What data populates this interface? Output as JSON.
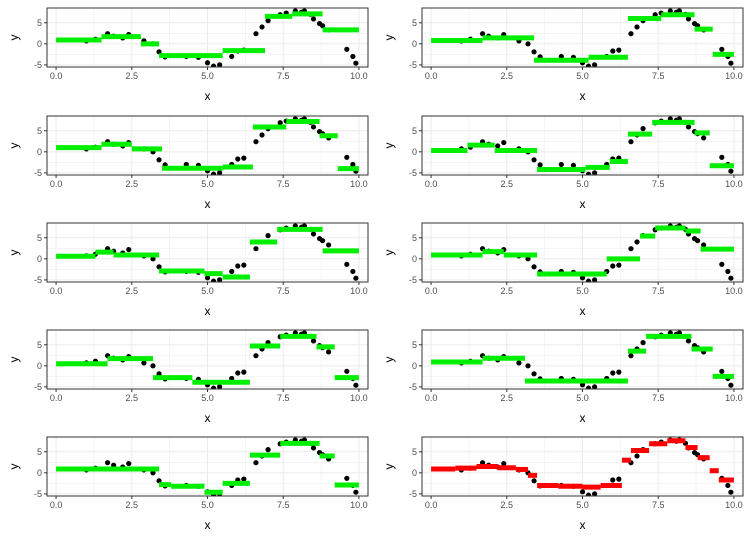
{
  "colors": {
    "fit_green": "#00ee00",
    "fit_red": "#ff0000",
    "points": "#000000",
    "panel_border": "#333333",
    "grid": "#ebebeb"
  },
  "points": {
    "x": [
      1.0,
      1.3,
      1.7,
      1.9,
      2.2,
      2.4,
      2.9,
      3.2,
      3.4,
      3.6,
      4.3,
      4.7,
      5.0,
      5.2,
      5.4,
      5.8,
      6.0,
      6.2,
      6.6,
      6.8,
      7.0,
      7.4,
      7.6,
      7.9,
      8.1,
      8.2,
      8.4,
      8.5,
      8.7,
      8.8,
      9.0,
      9.6,
      9.8,
      9.9
    ],
    "y": [
      0.7,
      1.1,
      2.4,
      1.8,
      1.4,
      2.2,
      0.7,
      0.0,
      -1.9,
      -3.1,
      -3.0,
      -3.2,
      -4.5,
      -5.3,
      -5.0,
      -3.0,
      -1.7,
      -1.5,
      2.4,
      4.0,
      5.5,
      6.9,
      7.3,
      7.8,
      7.5,
      7.8,
      7.0,
      5.9,
      4.8,
      4.3,
      3.3,
      -1.3,
      -3.0,
      -4.6
    ]
  },
  "chart_data": [
    {
      "type": "scatter",
      "xlabel": "x",
      "ylabel": "y",
      "xlim": [
        -0.3,
        10.3
      ],
      "ylim": [
        -5.5,
        8.5
      ],
      "x_ticks": [
        "0.0",
        "2.5",
        "5.0",
        "7.5",
        "10.0"
      ],
      "y_ticks": [
        "-5",
        "0",
        "5"
      ],
      "fit_color": "green",
      "steps": [
        [
          0.0,
          1.5,
          0.9
        ],
        [
          1.5,
          2.8,
          1.7
        ],
        [
          2.8,
          3.4,
          0.0
        ],
        [
          3.4,
          5.5,
          -2.8
        ],
        [
          5.5,
          6.9,
          -1.6
        ],
        [
          6.9,
          7.8,
          6.5
        ],
        [
          7.8,
          8.8,
          7.1
        ],
        [
          8.8,
          10.0,
          3.3
        ]
      ]
    },
    {
      "type": "scatter",
      "xlabel": "x",
      "ylabel": "y",
      "xlim": [
        -0.3,
        10.3
      ],
      "ylim": [
        -5.5,
        8.5
      ],
      "x_ticks": [
        "0.0",
        "2.5",
        "5.0",
        "7.5",
        "10.0"
      ],
      "y_ticks": [
        "-5",
        "0",
        "5"
      ],
      "fit_color": "green",
      "steps": [
        [
          0.0,
          1.7,
          0.8
        ],
        [
          1.7,
          3.4,
          1.4
        ],
        [
          3.4,
          5.2,
          -3.9
        ],
        [
          5.2,
          6.5,
          -3.2
        ],
        [
          6.5,
          7.6,
          6.0
        ],
        [
          7.6,
          8.7,
          6.9
        ],
        [
          8.7,
          9.3,
          3.5
        ],
        [
          9.3,
          10.0,
          -2.5
        ]
      ]
    },
    {
      "type": "scatter",
      "xlabel": "x",
      "ylabel": "y",
      "xlim": [
        -0.3,
        10.3
      ],
      "ylim": [
        -5.5,
        8.5
      ],
      "x_ticks": [
        "0.0",
        "2.5",
        "5.0",
        "7.5",
        "10.0"
      ],
      "y_ticks": [
        "-5",
        "0",
        "5"
      ],
      "fit_color": "green",
      "steps": [
        [
          0.0,
          1.5,
          1.0
        ],
        [
          1.5,
          2.5,
          1.8
        ],
        [
          2.5,
          3.5,
          0.7
        ],
        [
          3.5,
          5.5,
          -3.9
        ],
        [
          5.5,
          6.5,
          -3.6
        ],
        [
          6.5,
          7.6,
          5.9
        ],
        [
          7.6,
          8.7,
          7.2
        ],
        [
          8.7,
          9.3,
          3.8
        ],
        [
          9.3,
          10.0,
          -4.0
        ]
      ]
    },
    {
      "type": "scatter",
      "xlabel": "x",
      "ylabel": "y",
      "xlim": [
        -0.3,
        10.3
      ],
      "ylim": [
        -5.5,
        8.5
      ],
      "x_ticks": [
        "0.0",
        "2.5",
        "5.0",
        "7.5",
        "10.0"
      ],
      "y_ticks": [
        "-5",
        "0",
        "5"
      ],
      "fit_color": "green",
      "steps": [
        [
          0.0,
          1.2,
          0.3
        ],
        [
          1.2,
          2.1,
          1.6
        ],
        [
          2.1,
          3.5,
          0.3
        ],
        [
          3.5,
          5.1,
          -4.2
        ],
        [
          5.1,
          5.9,
          -3.7
        ],
        [
          5.9,
          6.5,
          -2.3
        ],
        [
          6.5,
          7.3,
          4.2
        ],
        [
          7.3,
          8.7,
          7.0
        ],
        [
          8.7,
          9.2,
          4.5
        ],
        [
          9.2,
          10.0,
          -3.3
        ]
      ]
    },
    {
      "type": "scatter",
      "xlabel": "x",
      "ylabel": "y",
      "xlim": [
        -0.3,
        10.3
      ],
      "ylim": [
        -5.5,
        8.5
      ],
      "x_ticks": [
        "0.0",
        "2.5",
        "5.0",
        "7.5",
        "10.0"
      ],
      "y_ticks": [
        "-5",
        "0",
        "5"
      ],
      "fit_color": "green",
      "steps": [
        [
          0.0,
          1.3,
          0.6
        ],
        [
          1.3,
          1.9,
          1.6
        ],
        [
          1.9,
          3.4,
          0.9
        ],
        [
          3.4,
          4.9,
          -2.9
        ],
        [
          4.9,
          5.5,
          -3.5
        ],
        [
          5.5,
          6.4,
          -4.3
        ],
        [
          6.4,
          7.3,
          4.0
        ],
        [
          7.3,
          8.8,
          7.0
        ],
        [
          8.8,
          10.0,
          1.9
        ]
      ]
    },
    {
      "type": "scatter",
      "xlabel": "x",
      "ylabel": "y",
      "xlim": [
        -0.3,
        10.3
      ],
      "ylim": [
        -5.5,
        8.5
      ],
      "x_ticks": [
        "0.0",
        "2.5",
        "5.0",
        "7.5",
        "10.0"
      ],
      "y_ticks": [
        "-5",
        "0",
        "5"
      ],
      "fit_color": "green",
      "steps": [
        [
          0.0,
          1.7,
          0.9
        ],
        [
          1.7,
          2.4,
          1.7
        ],
        [
          2.4,
          3.5,
          0.9
        ],
        [
          3.5,
          5.8,
          -3.6
        ],
        [
          5.8,
          6.9,
          0.0
        ],
        [
          6.9,
          7.4,
          5.4
        ],
        [
          7.4,
          8.4,
          7.3
        ],
        [
          8.4,
          8.9,
          6.6
        ],
        [
          8.9,
          10.0,
          2.3
        ]
      ]
    },
    {
      "type": "scatter",
      "xlabel": "x",
      "ylabel": "y",
      "xlim": [
        -0.3,
        10.3
      ],
      "ylim": [
        -5.5,
        8.5
      ],
      "x_ticks": [
        "0.0",
        "2.5",
        "5.0",
        "7.5",
        "10.0"
      ],
      "y_ticks": [
        "-5",
        "0",
        "5"
      ],
      "fit_color": "green",
      "steps": [
        [
          0.0,
          1.7,
          0.5
        ],
        [
          1.7,
          3.2,
          1.7
        ],
        [
          3.2,
          4.5,
          -2.8
        ],
        [
          4.5,
          6.4,
          -3.9
        ],
        [
          6.4,
          7.4,
          4.7
        ],
        [
          7.4,
          8.6,
          7.0
        ],
        [
          8.6,
          9.2,
          4.5
        ],
        [
          9.2,
          10.0,
          -2.8
        ]
      ]
    },
    {
      "type": "scatter",
      "xlabel": "x",
      "ylabel": "y",
      "xlim": [
        -0.3,
        10.3
      ],
      "ylim": [
        -5.5,
        8.5
      ],
      "x_ticks": [
        "0.0",
        "2.5",
        "5.0",
        "7.5",
        "10.0"
      ],
      "y_ticks": [
        "-5",
        "0",
        "5"
      ],
      "fit_color": "green",
      "steps": [
        [
          0.0,
          1.7,
          0.9
        ],
        [
          1.7,
          3.1,
          1.8
        ],
        [
          3.1,
          6.5,
          -3.6
        ],
        [
          6.5,
          7.1,
          3.5
        ],
        [
          7.1,
          8.6,
          7.0
        ],
        [
          8.6,
          9.3,
          4.0
        ],
        [
          9.3,
          10.0,
          -2.5
        ]
      ]
    },
    {
      "type": "scatter",
      "xlabel": "x",
      "ylabel": "y",
      "xlim": [
        -0.3,
        10.3
      ],
      "ylim": [
        -5.5,
        8.5
      ],
      "x_ticks": [
        "0.0",
        "2.5",
        "5.0",
        "7.5",
        "10.0"
      ],
      "y_ticks": [
        "-5",
        "0",
        "5"
      ],
      "fit_color": "green",
      "steps": [
        [
          0.0,
          3.4,
          0.9
        ],
        [
          3.4,
          3.8,
          -2.8
        ],
        [
          3.8,
          4.9,
          -3.2
        ],
        [
          4.9,
          5.5,
          -4.6
        ],
        [
          5.5,
          6.4,
          -2.5
        ],
        [
          6.4,
          7.4,
          4.2
        ],
        [
          7.4,
          8.7,
          7.0
        ],
        [
          8.7,
          9.2,
          4.0
        ],
        [
          9.2,
          10.0,
          -2.9
        ]
      ]
    },
    {
      "type": "scatter",
      "xlabel": "x",
      "ylabel": "y",
      "xlim": [
        -0.3,
        10.3
      ],
      "ylim": [
        -5.5,
        8.5
      ],
      "x_ticks": [
        "0.0",
        "2.5",
        "5.0",
        "7.5",
        "10.0"
      ],
      "y_ticks": [
        "-5",
        "0",
        "5"
      ],
      "fit_color": "red",
      "steps": [
        [
          0.0,
          0.8,
          0.9
        ],
        [
          0.8,
          1.5,
          1.1
        ],
        [
          1.5,
          2.2,
          1.5
        ],
        [
          2.2,
          2.8,
          1.2
        ],
        [
          2.8,
          3.2,
          0.8
        ],
        [
          3.2,
          3.5,
          -0.6
        ],
        [
          3.5,
          4.2,
          -3.0
        ],
        [
          4.2,
          5.0,
          -3.2
        ],
        [
          5.0,
          5.6,
          -3.4
        ],
        [
          5.6,
          6.3,
          -3.0
        ],
        [
          6.3,
          6.6,
          3.0
        ],
        [
          6.6,
          7.2,
          5.3
        ],
        [
          7.2,
          7.8,
          6.9
        ],
        [
          7.8,
          8.4,
          7.6
        ],
        [
          8.4,
          8.8,
          6.0
        ],
        [
          8.8,
          9.2,
          3.6
        ],
        [
          9.2,
          9.5,
          0.5
        ],
        [
          9.5,
          10.0,
          -1.7
        ]
      ]
    }
  ]
}
